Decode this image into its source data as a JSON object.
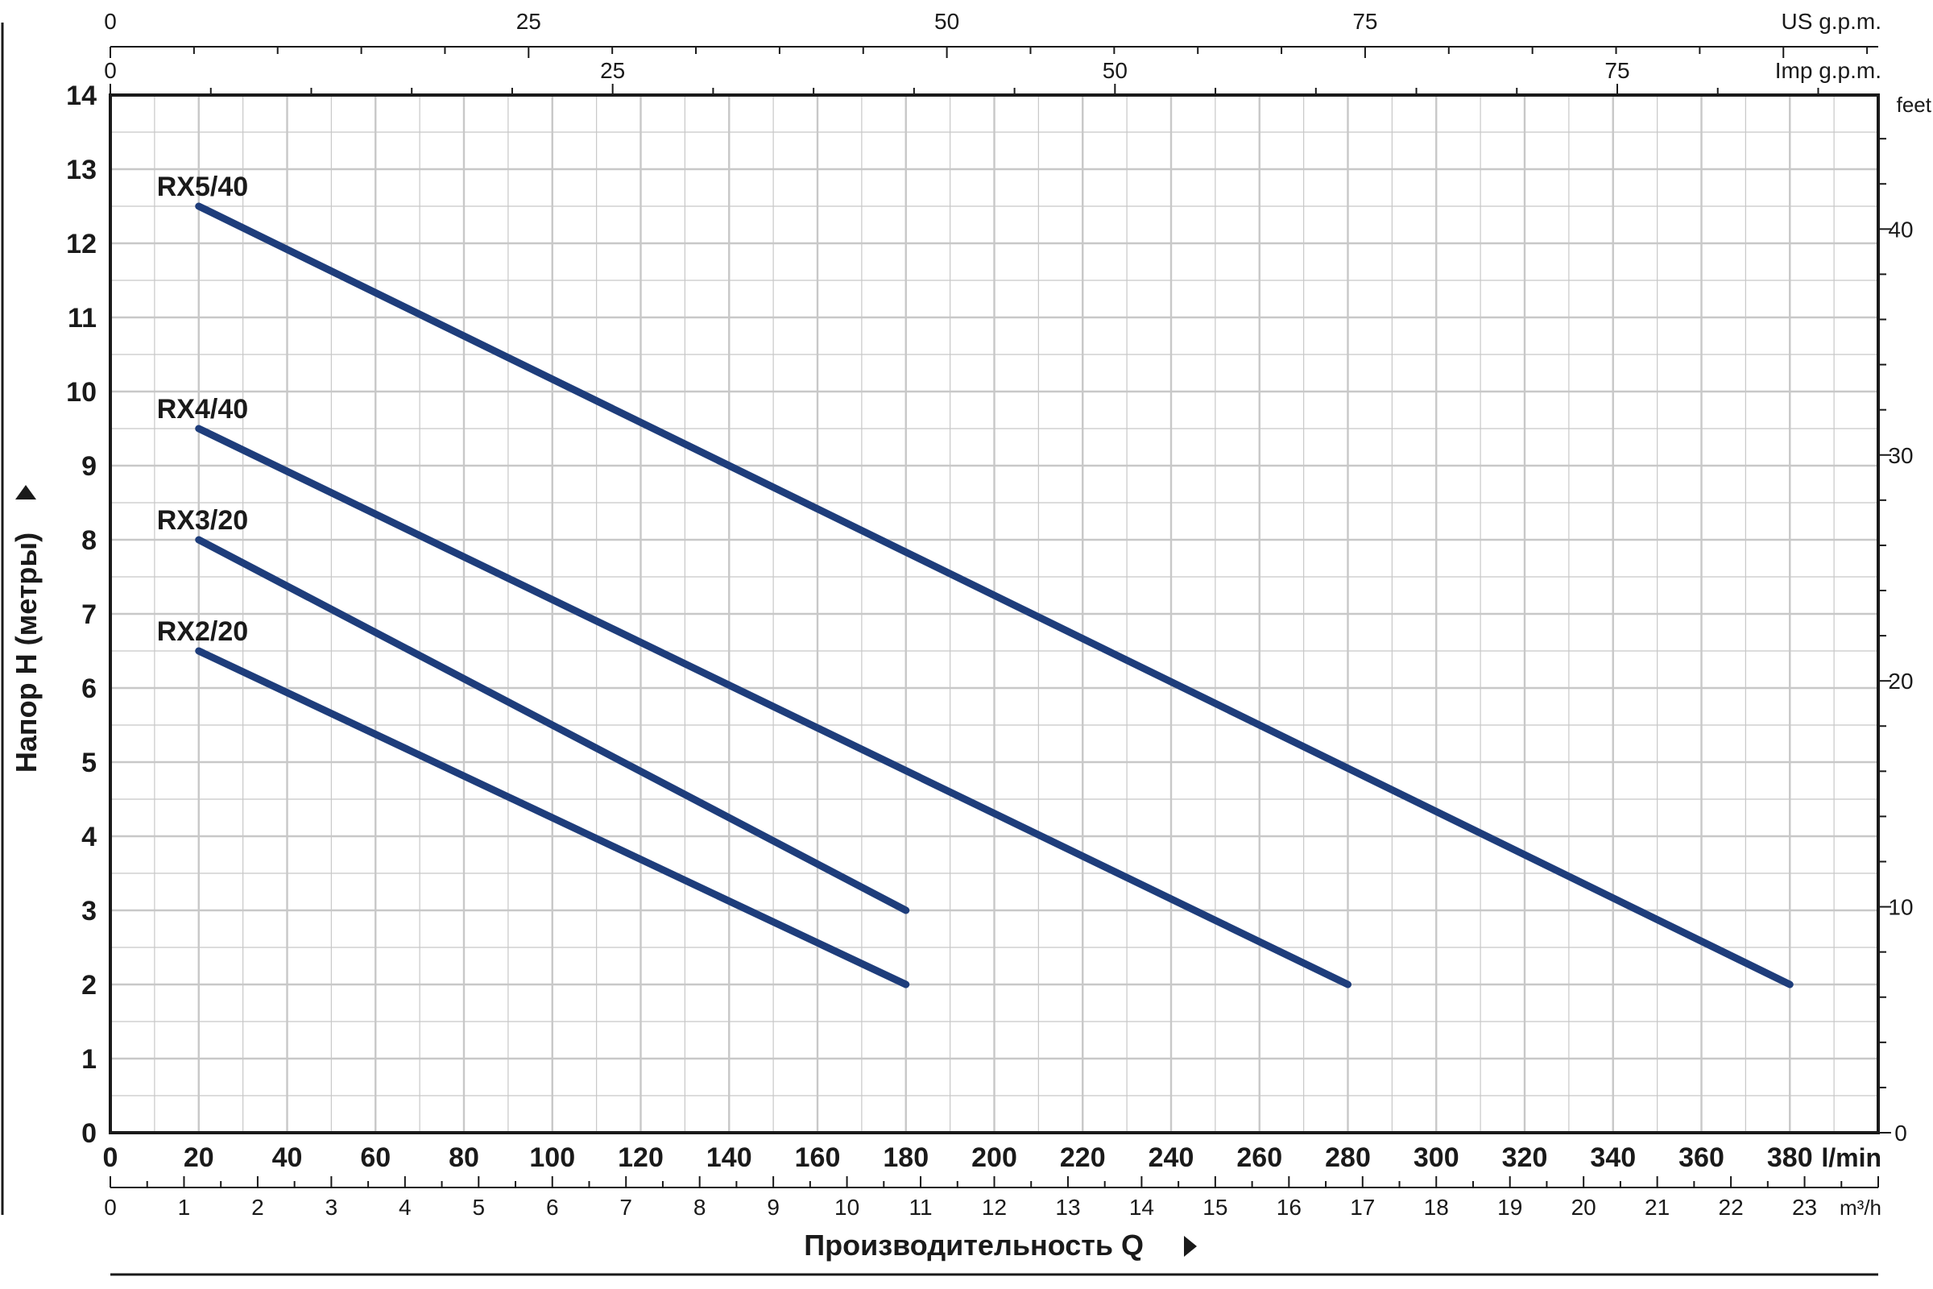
{
  "chart_data": {
    "type": "line",
    "x": {
      "label": "Производительность Q",
      "unit": "l/min",
      "range": [
        0,
        400
      ],
      "ticks": [
        0,
        20,
        40,
        60,
        80,
        100,
        120,
        140,
        160,
        180,
        200,
        220,
        240,
        260,
        280,
        300,
        320,
        340,
        360,
        380
      ]
    },
    "x_m3h": {
      "unit": "m³/h",
      "ticks": [
        0,
        1,
        2,
        3,
        4,
        5,
        6,
        7,
        8,
        9,
        10,
        11,
        12,
        13,
        14,
        15,
        16,
        17,
        18,
        19,
        20,
        21,
        22,
        23
      ]
    },
    "x_us_gpm": {
      "unit": "US g.p.m.",
      "ticks": [
        0,
        25,
        50,
        75
      ]
    },
    "x_imp_gpm": {
      "unit": "Imp g.p.m.",
      "ticks": [
        0,
        25,
        50,
        75
      ]
    },
    "y": {
      "label": "Напор H (метры)",
      "range": [
        0,
        14
      ],
      "ticks": [
        0,
        1,
        2,
        3,
        4,
        5,
        6,
        7,
        8,
        9,
        10,
        11,
        12,
        13,
        14
      ]
    },
    "y_feet": {
      "unit": "feet",
      "ticks": [
        0,
        10,
        20,
        30,
        40
      ]
    },
    "grid": true,
    "colors": {
      "series": "#1e3d7b",
      "grid": "#c8c8c8",
      "axis": "#1a1a1a"
    },
    "series": [
      {
        "name": "RX5/40",
        "points": [
          [
            20,
            12.5
          ],
          [
            380,
            2.0
          ]
        ]
      },
      {
        "name": "RX4/40",
        "points": [
          [
            20,
            9.5
          ],
          [
            280,
            2.0
          ]
        ]
      },
      {
        "name": "RX3/20",
        "points": [
          [
            20,
            8.0
          ],
          [
            180,
            3.0
          ]
        ]
      },
      {
        "name": "RX2/20",
        "points": [
          [
            20,
            6.5
          ],
          [
            180,
            2.0
          ]
        ]
      }
    ]
  }
}
